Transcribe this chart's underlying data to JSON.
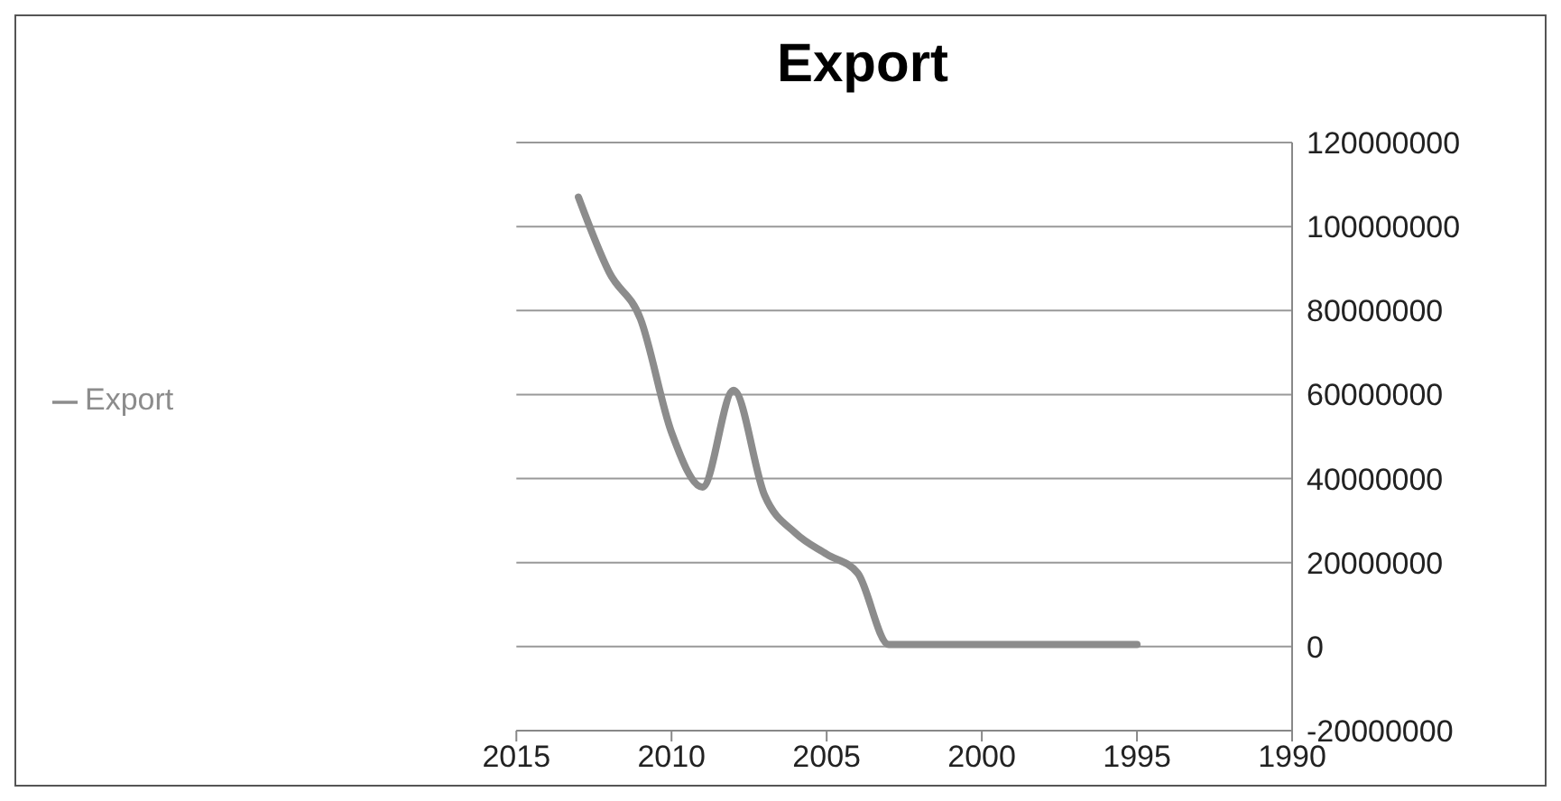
{
  "chart_data": {
    "type": "line",
    "title": "Export",
    "x": [
      2013,
      2012,
      2011,
      2010,
      2009,
      2008,
      2007,
      2006,
      2005,
      2004,
      2003,
      2002,
      2001,
      2000,
      1999,
      1998,
      1997,
      1996,
      1995
    ],
    "series": [
      {
        "name": "Export",
        "color": "#8c8c8c",
        "values": [
          107000000,
          89000000,
          78000000,
          51000000,
          38000000,
          61000000,
          36000000,
          27000000,
          22000000,
          17500000,
          500000,
          500000,
          500000,
          500000,
          500000,
          500000,
          500000,
          500000,
          500000
        ]
      }
    ],
    "xlim": [
      2015,
      1990
    ],
    "xticks": [
      2015,
      2010,
      2005,
      2000,
      1995,
      1990
    ],
    "ylim": [
      -20000000,
      120000000
    ],
    "yticks": [
      -20000000,
      0,
      20000000,
      40000000,
      60000000,
      80000000,
      100000000,
      120000000
    ],
    "grid": "y",
    "legend": "left",
    "marker": "none",
    "line_style": "solid"
  }
}
